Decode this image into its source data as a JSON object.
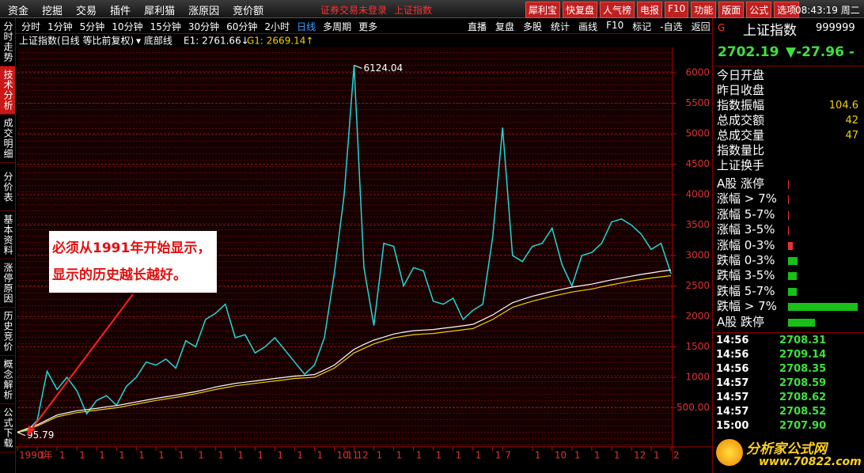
{
  "menu": [
    "资金",
    "挖掘",
    "交易",
    "插件",
    "犀利猫",
    "涨原因",
    "竞价额"
  ],
  "status": [
    "证券交易未登录",
    "上证指数"
  ],
  "buttons": [
    "犀利宝",
    "快复盘",
    "人气榜",
    "电报",
    "F10",
    "功能",
    "版面",
    "公式",
    "选项"
  ],
  "clock": "08:43:19 周二",
  "side_tabs": [
    "分时走势",
    "技术分析",
    "成交明细",
    "分价表",
    "基本资料",
    "涨停原因",
    "历史竞价",
    "概念解析",
    "公式下载"
  ],
  "periods": [
    "分时",
    "1分钟",
    "5分钟",
    "10分钟",
    "15分钟",
    "30分钟",
    "60分钟",
    "2小时",
    "日线",
    "多周期",
    "更多"
  ],
  "tools": [
    "直播",
    "复盘",
    "多股",
    "统计",
    "画线",
    "F10",
    "标记",
    "-自选",
    "返回"
  ],
  "chart_data": {
    "type": "line",
    "title": "上证指数(日线 等比前复权)",
    "indicator": "▾ 底部线",
    "series": [
      {
        "name": "上证指数",
        "color": "#1fd8d8",
        "values": [
          95.79,
          130,
          290,
          1100,
          800,
          1000,
          780,
          400,
          620,
          700,
          540,
          850,
          1000,
          1250,
          1200,
          1300,
          1150,
          1600,
          1500,
          1950,
          2050,
          2200,
          1650,
          1700,
          1400,
          1500,
          1650,
          1450,
          1250,
          1050,
          1200,
          1650,
          2700,
          4000,
          6124.04,
          2800,
          1850,
          3200,
          3150,
          2500,
          2800,
          2750,
          2250,
          2200,
          2300,
          1950,
          2100,
          2200,
          3300,
          5100,
          3000,
          2900,
          3150,
          3200,
          3450,
          2850,
          2500,
          3000,
          3050,
          3200,
          3550,
          3600,
          3500,
          3350,
          3100,
          3200,
          2702.19
        ]
      },
      {
        "name": "E1: 2761.66↓",
        "color": "#ffffff",
        "values": [
          100,
          160,
          220,
          300,
          380,
          415,
          450,
          470,
          490,
          515,
          535,
          565,
          595,
          625,
          655,
          680,
          705,
          735,
          765,
          800,
          840,
          870,
          900,
          920,
          940,
          960,
          980,
          1000,
          1020,
          1030,
          1045,
          1120,
          1200,
          1330,
          1460,
          1540,
          1610,
          1660,
          1710,
          1740,
          1765,
          1775,
          1785,
          1805,
          1825,
          1845,
          1870,
          1945,
          2025,
          2125,
          2225,
          2280,
          2330,
          2370,
          2410,
          2445,
          2480,
          2505,
          2530,
          2565,
          2600,
          2630,
          2660,
          2690,
          2715,
          2740,
          2761.66
        ]
      },
      {
        "name": "G1: 2669.14↑",
        "color": "#f0d000",
        "values": [
          90,
          145,
          200,
          275,
          350,
          385,
          420,
          440,
          460,
          480,
          500,
          530,
          560,
          590,
          620,
          645,
          670,
          700,
          730,
          765,
          800,
          830,
          860,
          880,
          900,
          920,
          940,
          960,
          980,
          990,
          1000,
          1075,
          1150,
          1275,
          1400,
          1475,
          1550,
          1600,
          1650,
          1675,
          1700,
          1710,
          1720,
          1740,
          1760,
          1780,
          1800,
          1875,
          1950,
          2050,
          2150,
          2200,
          2250,
          2290,
          2330,
          2365,
          2400,
          2425,
          2450,
          2485,
          2520,
          2550,
          2580,
          2605,
          2630,
          2650,
          2669.14
        ]
      }
    ],
    "ylim": [
      -143,
      6416
    ],
    "yticks": [
      {
        "value": 500,
        "label": "500.00"
      },
      1000,
      1500,
      2000,
      2500,
      3000,
      3500,
      4000,
      4500,
      5000,
      5500,
      6000
    ],
    "xlim": [
      0,
      66
    ],
    "xticks": [
      {
        "value": 0,
        "label": "1990年"
      },
      {
        "value": 2,
        "label": "1"
      },
      {
        "value": 4,
        "label": "1"
      },
      {
        "value": 6,
        "label": "1"
      },
      {
        "value": 8,
        "label": "1"
      },
      {
        "value": 10,
        "label": "1"
      },
      {
        "value": 12,
        "label": "1"
      },
      {
        "value": 14,
        "label": "1"
      },
      {
        "value": 16,
        "label": "1"
      },
      {
        "value": 18,
        "label": "1"
      },
      {
        "value": 20,
        "label": "1"
      },
      {
        "value": 22,
        "label": "1"
      },
      {
        "value": 24,
        "label": "1"
      },
      {
        "value": 26,
        "label": "1"
      },
      {
        "value": 28,
        "label": "1"
      },
      {
        "value": 30,
        "label": "1"
      },
      {
        "value": 32,
        "label": "10"
      },
      {
        "value": 33,
        "label": "11"
      },
      {
        "value": 34,
        "label": "12"
      },
      {
        "value": 36,
        "label": "1"
      },
      {
        "value": 38,
        "label": "1"
      },
      {
        "value": 40,
        "label": "1"
      },
      {
        "value": 42,
        "label": "1"
      },
      {
        "value": 44,
        "label": "1"
      },
      {
        "value": 46,
        "label": "1"
      },
      {
        "value": 48,
        "label": "1"
      },
      {
        "value": 49,
        "label": "7"
      },
      {
        "value": 52,
        "label": "1"
      },
      {
        "value": 54,
        "label": "10"
      },
      {
        "value": 56,
        "label": "1"
      },
      {
        "value": 58,
        "label": "1"
      },
      {
        "value": 60,
        "label": "1"
      },
      {
        "value": 62,
        "label": "12"
      },
      {
        "value": 64,
        "label": "1"
      },
      {
        "value": 66,
        "label": "2"
      }
    ],
    "annotations": [
      {
        "x": 34,
        "value": 6124.04,
        "label": "6124.04"
      },
      {
        "x": 0,
        "value": 95.79,
        "label": "95.79"
      }
    ],
    "note": [
      "必须从1991年开始显示，",
      "显示的历史越长越好。"
    ],
    "grid": true
  },
  "quote": {
    "badge": "G",
    "name": "上证指数",
    "code": "999999",
    "price": 2702.19,
    "change": "▼-27.96 -",
    "rows": [
      {
        "label": "今日开盘"
      },
      {
        "label": "昨日收盘"
      },
      {
        "label": "指数振幅",
        "value": 104.6
      },
      {
        "label": "总成交额",
        "value": 42
      },
      {
        "label": "总成交量",
        "value": 47
      },
      {
        "label": "指数量比"
      },
      {
        "label": "上证换手"
      }
    ]
  },
  "breadth": {
    "xlim": [
      0,
      100
    ],
    "rows": [
      {
        "label": "A股 涨停",
        "value": 1,
        "color": "#e83030"
      },
      {
        "label": "涨幅 > 7%",
        "value": 1,
        "color": "#e83030"
      },
      {
        "label": "涨幅 5-7%",
        "value": 1,
        "color": "#e83030"
      },
      {
        "label": "涨幅 3-5%",
        "value": 1,
        "color": "#e83030"
      },
      {
        "label": "涨幅 0-3%",
        "value": 6,
        "color": "#e83030"
      },
      {
        "label": "跌幅 0-3%",
        "value": 13,
        "color": "#18c018"
      },
      {
        "label": "跌幅 3-5%",
        "value": 11,
        "color": "#18c018"
      },
      {
        "label": "跌幅 5-7%",
        "value": 11,
        "color": "#18c018"
      },
      {
        "label": "跌幅 > 7%",
        "value": 92,
        "color": "#18c018"
      },
      {
        "label": "A股 跌停",
        "value": 35,
        "color": "#18c018"
      }
    ]
  },
  "ticks": [
    {
      "time": "14:56",
      "price": 2708.31
    },
    {
      "time": "14:56",
      "price": 2709.14
    },
    {
      "time": "14:56",
      "price": 2708.35
    },
    {
      "time": "14:57",
      "price": 2708.59
    },
    {
      "time": "14:57",
      "price": 2708.62
    },
    {
      "time": "14:57",
      "price": 2708.52
    },
    {
      "time": "15:00",
      "price": 2707.9,
      "label": "2707.90"
    }
  ],
  "logo": [
    "分析家公式网",
    "www.70822.com"
  ]
}
